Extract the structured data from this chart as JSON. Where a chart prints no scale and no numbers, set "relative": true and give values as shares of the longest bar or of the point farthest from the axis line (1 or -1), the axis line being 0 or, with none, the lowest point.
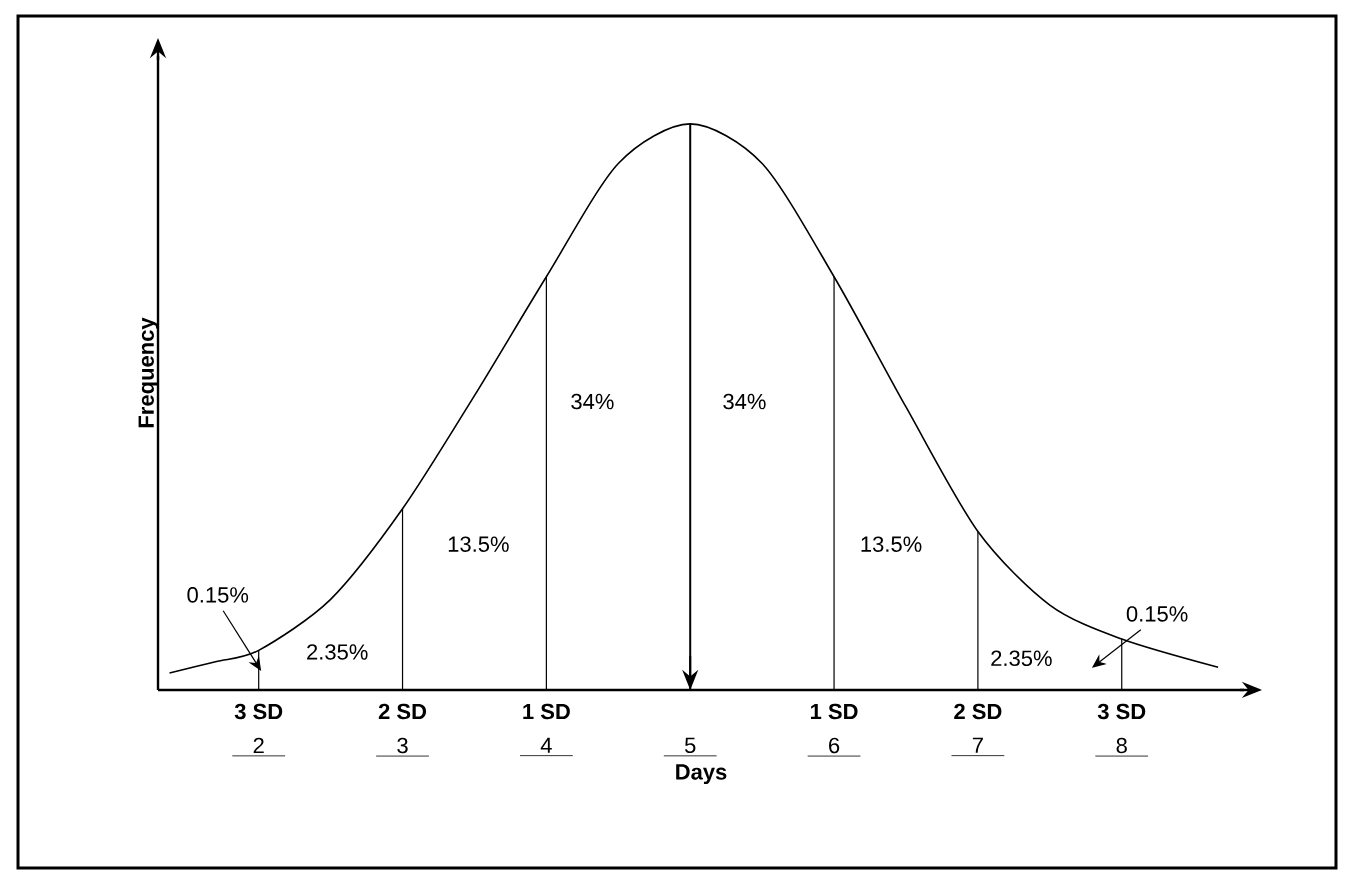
{
  "chart_data": {
    "type": "line",
    "relative": true,
    "xlabel": "Days",
    "ylabel": "Frequency",
    "xlim": [
      1.3,
      8.85
    ],
    "xticks": [
      2,
      3,
      4,
      5,
      6,
      7,
      8
    ],
    "series": [
      {
        "color": "#000000",
        "x": [
          1.38,
          1.7,
          2,
          2.5,
          3,
          3.5,
          4,
          4.5,
          5,
          5.5,
          6,
          6.5,
          7,
          7.5,
          8,
          8.67
        ],
        "values": [
          0.03,
          0.05,
          0.07,
          0.16,
          0.32,
          0.52,
          0.73,
          0.93,
          1.0,
          0.93,
          0.73,
          0.5,
          0.28,
          0.15,
          0.09,
          0.04
        ]
      }
    ],
    "ref_lines": [
      {
        "axis": "x",
        "value": 2,
        "label": "3 SD"
      },
      {
        "axis": "x",
        "value": 3,
        "label": "2 SD"
      },
      {
        "axis": "x",
        "value": 4,
        "label": "1 SD"
      },
      {
        "axis": "x",
        "value": 5
      },
      {
        "axis": "x",
        "value": 6,
        "label": "1 SD"
      },
      {
        "axis": "x",
        "value": 7,
        "label": "2 SD"
      },
      {
        "axis": "x",
        "value": 8,
        "label": "3 SD"
      }
    ],
    "annotations": [
      "0.15%",
      "2.35%",
      "13.5%",
      "34%",
      "34%",
      "13.5%",
      "2.35%",
      "0.15%"
    ]
  }
}
